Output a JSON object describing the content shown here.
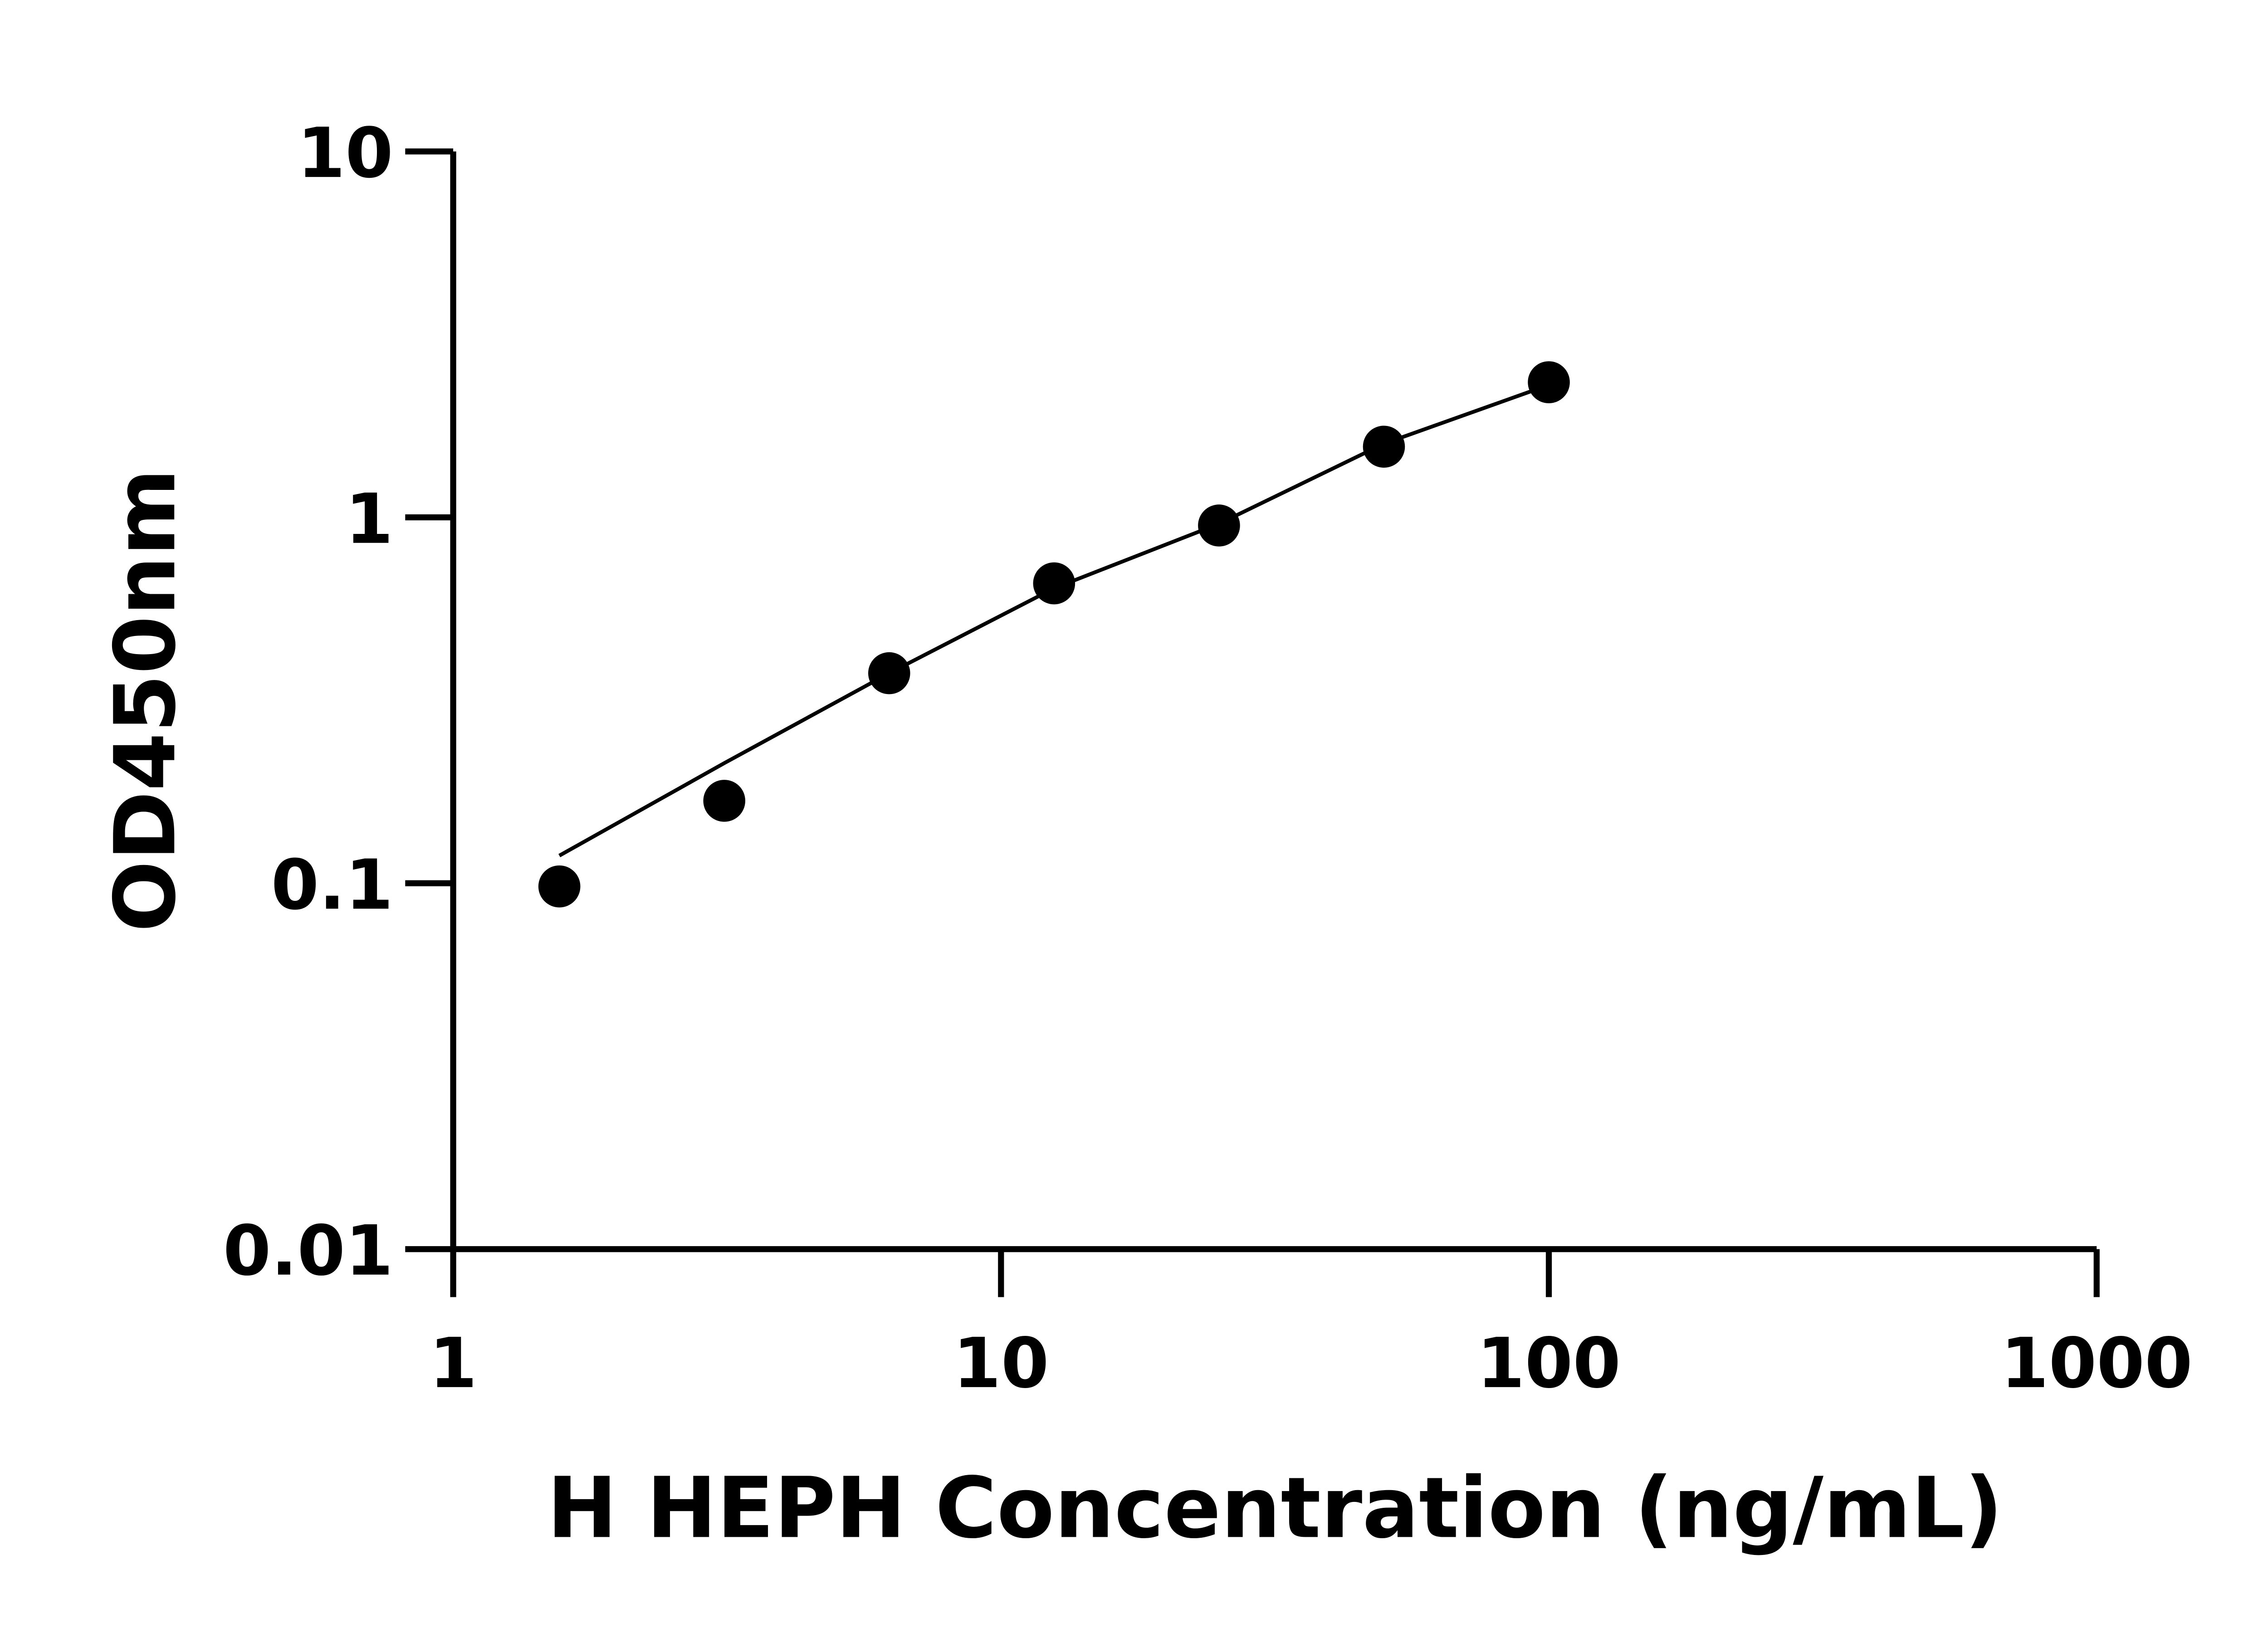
{
  "chart_data": {
    "type": "scatter",
    "title": "",
    "xlabel": "H HEPH Concentration (ng/mL)",
    "ylabel": "OD450nm",
    "xscale": "log",
    "yscale": "log",
    "xlim": [
      1,
      1000
    ],
    "ylim": [
      0.01,
      10
    ],
    "xticks": [
      1,
      10,
      100,
      1000
    ],
    "xtick_labels": [
      "1",
      "10",
      "100",
      "1000"
    ],
    "yticks": [
      0.01,
      0.1,
      1,
      10
    ],
    "ytick_labels": [
      "0.01",
      "0.1",
      "1",
      "10"
    ],
    "grid": false,
    "legend": "none",
    "colors": {
      "points": "#000000",
      "line": "#000000"
    },
    "series": [
      {
        "type": "scatter",
        "x": [
          1.5625,
          3.125,
          6.25,
          12.5,
          25,
          50,
          100
        ],
        "y": [
          0.098,
          0.168,
          0.375,
          0.66,
          0.95,
          1.56,
          2.34
        ]
      },
      {
        "type": "line",
        "x": [
          1.5625,
          3.125,
          6.25,
          12.5,
          25,
          50,
          92.7
        ],
        "y": [
          0.119,
          0.213,
          0.375,
          0.64,
          0.96,
          1.59,
          2.21
        ]
      }
    ]
  }
}
